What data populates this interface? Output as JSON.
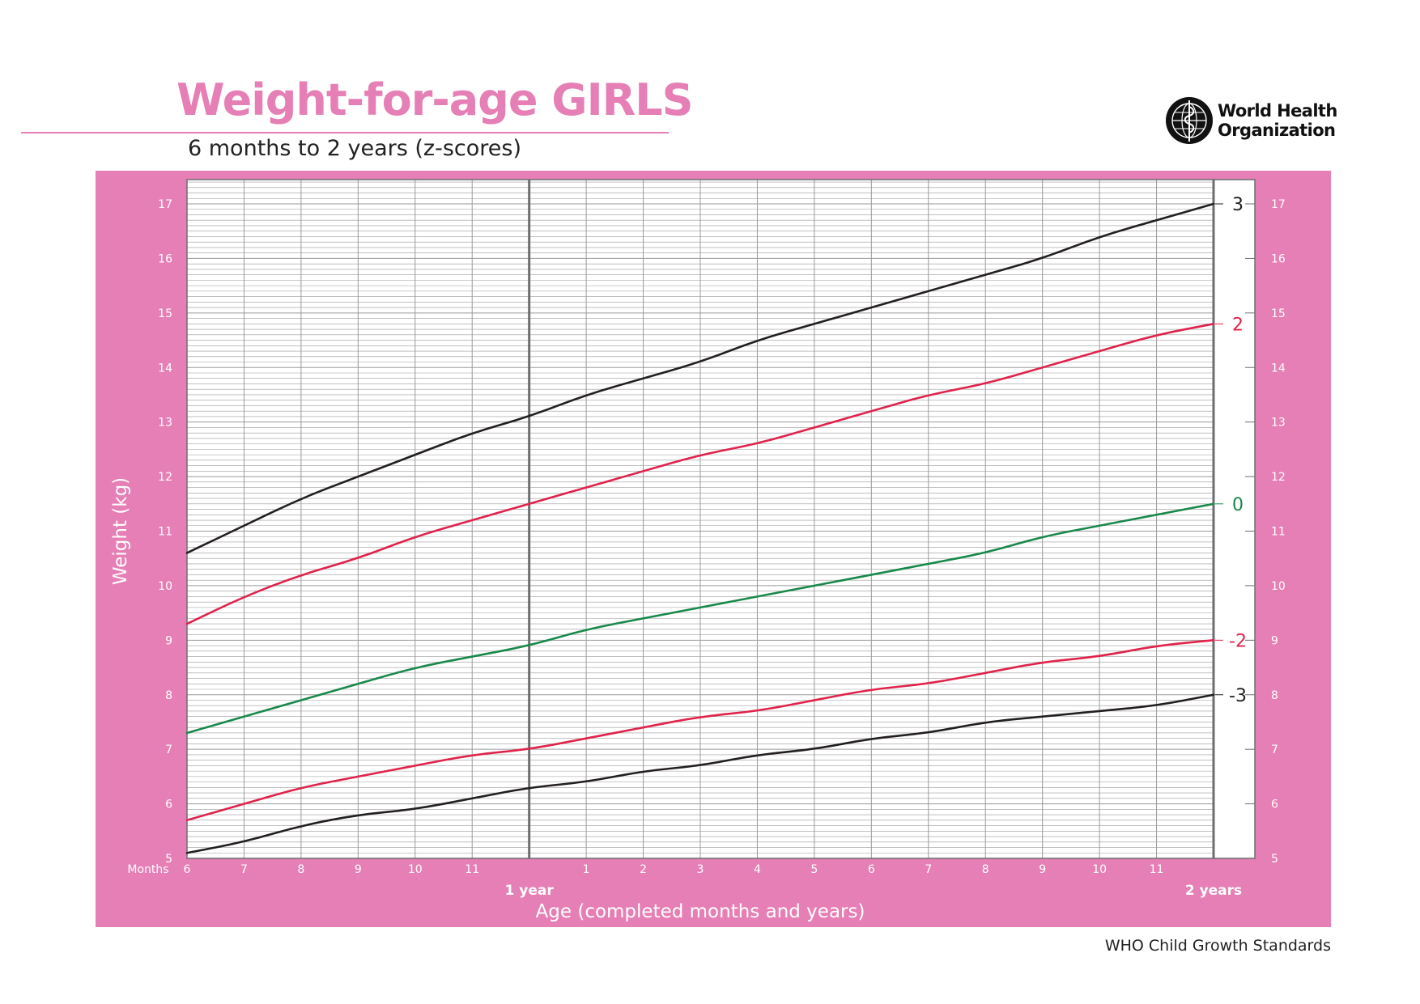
{
  "header": {
    "title": "Weight-for-age GIRLS",
    "subtitle": "6 months to 2 years (z-scores)"
  },
  "logo": {
    "name_line1": "World Health",
    "name_line2": "Organization",
    "icon": "who-emblem-icon"
  },
  "footer": {
    "text": "WHO Child Growth Standards"
  },
  "colors": {
    "brand_pink": "#e57fb5",
    "sd3": "#231f20",
    "sd2": "#e0234b",
    "median": "#19894b",
    "grid": "#9a9a9a",
    "year_line": "#6d6e71"
  },
  "chart_data": {
    "type": "line",
    "title": "Weight-for-age GIRLS",
    "subtitle": "6 months to 2 years (z-scores)",
    "xlabel": "Age (completed months and years)",
    "ylabel": "Weight (kg)",
    "x_unit_label": "Months",
    "xlim": [
      6,
      24
    ],
    "ylim": [
      5,
      17
    ],
    "grid": true,
    "x_ticks": [
      {
        "value": 6,
        "label": "6"
      },
      {
        "value": 7,
        "label": "7"
      },
      {
        "value": 8,
        "label": "8"
      },
      {
        "value": 9,
        "label": "9"
      },
      {
        "value": 10,
        "label": "10"
      },
      {
        "value": 11,
        "label": "11"
      },
      {
        "value": 13,
        "label": "1"
      },
      {
        "value": 14,
        "label": "2"
      },
      {
        "value": 15,
        "label": "3"
      },
      {
        "value": 16,
        "label": "4"
      },
      {
        "value": 17,
        "label": "5"
      },
      {
        "value": 18,
        "label": "6"
      },
      {
        "value": 19,
        "label": "7"
      },
      {
        "value": 20,
        "label": "8"
      },
      {
        "value": 21,
        "label": "9"
      },
      {
        "value": 22,
        "label": "10"
      },
      {
        "value": 23,
        "label": "11"
      }
    ],
    "year_markers": [
      {
        "value": 12,
        "label": "1 year"
      },
      {
        "value": 24,
        "label": "2 years"
      }
    ],
    "y_ticks": [
      5,
      6,
      7,
      8,
      9,
      10,
      11,
      12,
      13,
      14,
      15,
      16,
      17
    ],
    "x": [
      6,
      7,
      8,
      9,
      10,
      11,
      12,
      13,
      14,
      15,
      16,
      17,
      18,
      19,
      20,
      21,
      22,
      23,
      24
    ],
    "series": [
      {
        "name": "3",
        "color": "#231f20",
        "values": [
          10.6,
          11.1,
          11.6,
          12.0,
          12.4,
          12.8,
          13.1,
          13.5,
          13.8,
          14.1,
          14.5,
          14.8,
          15.1,
          15.4,
          15.7,
          16.0,
          16.4,
          16.7,
          17.0
        ]
      },
      {
        "name": "2",
        "color": "#e0234b",
        "values": [
          9.3,
          9.8,
          10.2,
          10.5,
          10.9,
          11.2,
          11.5,
          11.8,
          12.1,
          12.4,
          12.6,
          12.9,
          13.2,
          13.5,
          13.7,
          14.0,
          14.3,
          14.6,
          14.8
        ]
      },
      {
        "name": "0",
        "color": "#19894b",
        "values": [
          7.3,
          7.6,
          7.9,
          8.2,
          8.5,
          8.7,
          8.9,
          9.2,
          9.4,
          9.6,
          9.8,
          10.0,
          10.2,
          10.4,
          10.6,
          10.9,
          11.1,
          11.3,
          11.5
        ]
      },
      {
        "name": "-2",
        "color": "#e0234b",
        "values": [
          5.7,
          6.0,
          6.3,
          6.5,
          6.7,
          6.9,
          7.0,
          7.2,
          7.4,
          7.6,
          7.7,
          7.9,
          8.1,
          8.2,
          8.4,
          8.6,
          8.7,
          8.9,
          9.0
        ]
      },
      {
        "name": "-3",
        "color": "#231f20",
        "values": [
          5.1,
          5.3,
          5.6,
          5.8,
          5.9,
          6.1,
          6.3,
          6.4,
          6.6,
          6.7,
          6.9,
          7.0,
          7.2,
          7.3,
          7.5,
          7.6,
          7.7,
          7.8,
          8.0
        ]
      }
    ]
  }
}
